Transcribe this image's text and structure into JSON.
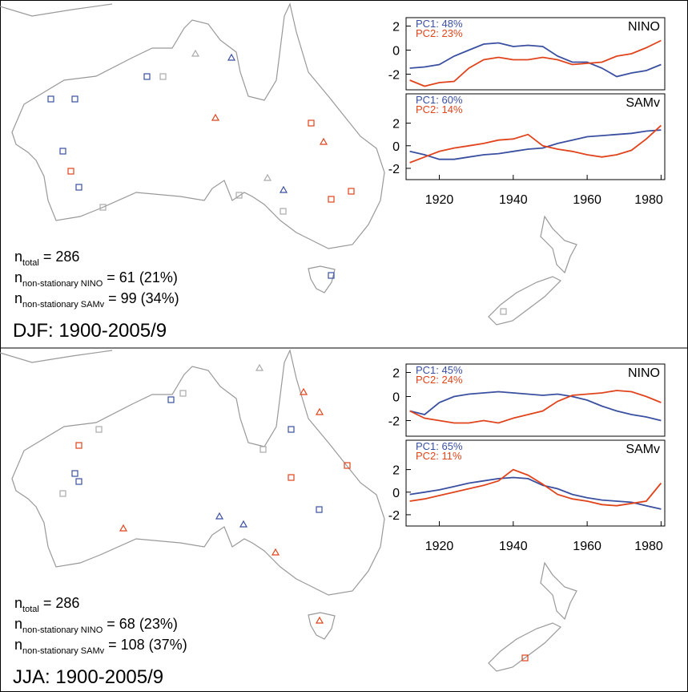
{
  "panels": [
    {
      "season": "DJF: 1900-2005/9",
      "stats": [
        {
          "symbol": "n",
          "subscript": "total",
          "text": "= 286"
        },
        {
          "symbol": "n",
          "subscript": "non-stationary NINO",
          "text": "= 61 (21%)"
        },
        {
          "symbol": "n",
          "subscript": "non-stationary SAMv",
          "text": "= 99 (34%)"
        }
      ]
    },
    {
      "season": "JJA: 1900-2005/9",
      "stats": [
        {
          "symbol": "n",
          "subscript": "total",
          "text": "= 286"
        },
        {
          "symbol": "n",
          "subscript": "non-stationary NINO",
          "text": "= 68 (23%)"
        },
        {
          "symbol": "n",
          "subscript": "non-stationary SAMv",
          "text": "= 108 (37%)"
        }
      ]
    }
  ],
  "chart_data": [
    {
      "type": "line",
      "title": "NINO",
      "x": [
        1912,
        1916,
        1920,
        1924,
        1928,
        1932,
        1936,
        1940,
        1944,
        1948,
        1952,
        1956,
        1960,
        1964,
        1968,
        1972,
        1976,
        1980
      ],
      "xlim": [
        1911,
        1981
      ],
      "ylim": [
        -3.3,
        2.7
      ],
      "yticks": [
        -2,
        0,
        2
      ],
      "series": [
        {
          "name": "PC1: 48%",
          "color": "#3a4fa0",
          "values": [
            -1.5,
            -1.4,
            -1.2,
            -0.5,
            0,
            0.5,
            0.6,
            0.3,
            0.4,
            0.3,
            -0.5,
            -1.0,
            -1.0,
            -1.5,
            -2.2,
            -1.9,
            -1.7,
            -1.2
          ]
        },
        {
          "name": "PC2: 23%",
          "color": "#e0441c",
          "values": [
            -2.5,
            -3,
            -2.7,
            -2.6,
            -1.5,
            -0.8,
            -0.6,
            -0.8,
            -0.8,
            -0.6,
            -0.8,
            -1.2,
            -1.1,
            -1.0,
            -0.5,
            -0.3,
            0.2,
            0.8
          ]
        }
      ]
    },
    {
      "type": "line",
      "title": "SAMv",
      "x": [
        1912,
        1916,
        1920,
        1924,
        1928,
        1932,
        1936,
        1940,
        1944,
        1948,
        1952,
        1956,
        1960,
        1964,
        1968,
        1972,
        1976,
        1980
      ],
      "xlim": [
        1911,
        1981
      ],
      "ylim": [
        -3,
        4.6
      ],
      "yticks": [
        -2,
        0,
        2
      ],
      "xticks": [
        1920,
        1940,
        1960,
        1980
      ],
      "series": [
        {
          "name": "PC1: 60%",
          "color": "#3a4fa0",
          "values": [
            -0.5,
            -0.8,
            -1.2,
            -1.2,
            -1.0,
            -0.8,
            -0.7,
            -0.5,
            -0.3,
            -0.2,
            0.2,
            0.5,
            0.8,
            0.9,
            1.0,
            1.1,
            1.3,
            1.4
          ]
        },
        {
          "name": "PC2: 14%",
          "color": "#e0441c",
          "values": [
            -1.5,
            -1.0,
            -0.5,
            -0.2,
            0,
            0.2,
            0.5,
            0.6,
            1.0,
            0.0,
            -0.3,
            -0.5,
            -0.8,
            -1.0,
            -0.8,
            -0.4,
            0.6,
            1.8
          ]
        }
      ]
    },
    {
      "type": "line",
      "title": "NINO",
      "x": [
        1912,
        1916,
        1920,
        1924,
        1928,
        1932,
        1936,
        1940,
        1944,
        1948,
        1952,
        1956,
        1960,
        1964,
        1968,
        1972,
        1976,
        1980
      ],
      "xlim": [
        1911,
        1981
      ],
      "ylim": [
        -3.3,
        2.7
      ],
      "yticks": [
        -2,
        0,
        2
      ],
      "series": [
        {
          "name": "PC1: 45%",
          "color": "#3a4fa0",
          "values": [
            -1.2,
            -1.5,
            -0.5,
            0,
            0.2,
            0.3,
            0.4,
            0.3,
            0.2,
            0.1,
            0.2,
            0,
            -0.3,
            -0.8,
            -1.2,
            -1.5,
            -1.7,
            -2
          ]
        },
        {
          "name": "PC2: 24%",
          "color": "#e0441c",
          "values": [
            -1.2,
            -1.8,
            -2,
            -2.2,
            -2.2,
            -2.0,
            -2.2,
            -1.8,
            -1.5,
            -1.2,
            -0.4,
            0.1,
            0.2,
            0.3,
            0.5,
            0.4,
            0,
            -0.5
          ]
        }
      ]
    },
    {
      "type": "line",
      "title": "SAMv",
      "x": [
        1912,
        1916,
        1920,
        1924,
        1928,
        1932,
        1936,
        1940,
        1944,
        1948,
        1952,
        1956,
        1960,
        1964,
        1968,
        1972,
        1976,
        1980
      ],
      "xlim": [
        1911,
        1981
      ],
      "ylim": [
        -3,
        4.6
      ],
      "yticks": [
        -2,
        0,
        2
      ],
      "xticks": [
        1920,
        1940,
        1960,
        1980
      ],
      "series": [
        {
          "name": "PC1: 65%",
          "color": "#3a4fa0",
          "values": [
            -0.2,
            0,
            0.2,
            0.5,
            0.8,
            1.0,
            1.2,
            1.3,
            1.2,
            0.6,
            0.3,
            -0.2,
            -0.5,
            -0.7,
            -0.8,
            -0.9,
            -1.2,
            -1.5
          ]
        },
        {
          "name": "PC2: 11%",
          "color": "#e0441c",
          "values": [
            -0.8,
            -0.6,
            -0.3,
            0,
            0.3,
            0.6,
            1.0,
            2.0,
            1.5,
            0.7,
            -0.2,
            -0.6,
            -0.8,
            -1.1,
            -1.2,
            -1.0,
            -0.8,
            0.8
          ]
        }
      ]
    }
  ]
}
